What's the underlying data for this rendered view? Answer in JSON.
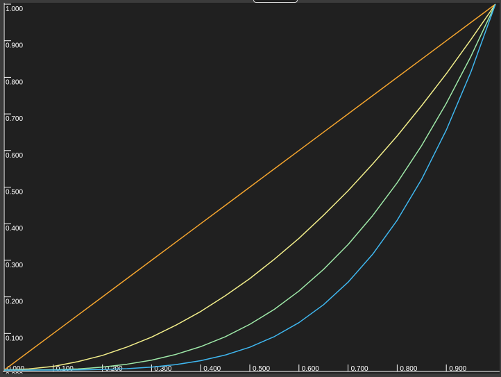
{
  "chart_data": {
    "type": "line",
    "title": "",
    "xlabel": "",
    "ylabel": "",
    "xlim": [
      0,
      1
    ],
    "ylim": [
      0,
      1
    ],
    "x_ticks": [
      "0.000",
      "0.100",
      "0.200",
      "0.300",
      "0.400",
      "0.500",
      "0.600",
      "0.700",
      "0.800",
      "0.900"
    ],
    "y_ticks": [
      "0.000",
      "0.100",
      "0.200",
      "0.300",
      "0.400",
      "0.500",
      "0.600",
      "0.700",
      "0.800",
      "0.900",
      "1.000"
    ],
    "x_tick_values": [
      0,
      0.1,
      0.2,
      0.3,
      0.4,
      0.5,
      0.6,
      0.7,
      0.8,
      0.9
    ],
    "y_tick_values": [
      0,
      0.1,
      0.2,
      0.3,
      0.4,
      0.5,
      0.6,
      0.7,
      0.8,
      0.9,
      1.0
    ],
    "x": [
      0,
      0.05,
      0.1,
      0.15,
      0.2,
      0.25,
      0.3,
      0.35,
      0.4,
      0.45,
      0.5,
      0.55,
      0.6,
      0.65,
      0.7,
      0.75,
      0.8,
      0.85,
      0.9,
      0.95,
      1.0
    ],
    "series": [
      {
        "color": "#f5a52e",
        "values": [
          0,
          0.05,
          0.1,
          0.15,
          0.2,
          0.25,
          0.3,
          0.35,
          0.4,
          0.45,
          0.5,
          0.55,
          0.6,
          0.65,
          0.7,
          0.75,
          0.8,
          0.85,
          0.9,
          0.95,
          1.0
        ]
      },
      {
        "color": "#f2ee8a",
        "values": [
          0,
          0.003,
          0.01,
          0.023,
          0.04,
          0.063,
          0.09,
          0.123,
          0.16,
          0.203,
          0.25,
          0.303,
          0.36,
          0.423,
          0.49,
          0.563,
          0.64,
          0.723,
          0.81,
          0.903,
          1.0
        ]
      },
      {
        "color": "#9ee8a8",
        "values": [
          0,
          0.0001,
          0.001,
          0.003,
          0.008,
          0.016,
          0.027,
          0.043,
          0.064,
          0.091,
          0.125,
          0.166,
          0.216,
          0.275,
          0.343,
          0.422,
          0.512,
          0.614,
          0.729,
          0.857,
          1.0
        ]
      },
      {
        "color": "#3fb7f0",
        "values": [
          0,
          0.0,
          0.0001,
          0.0005,
          0.0016,
          0.0039,
          0.0081,
          0.015,
          0.0256,
          0.041,
          0.0625,
          0.0915,
          0.1296,
          0.1785,
          0.2401,
          0.3164,
          0.4096,
          0.522,
          0.6561,
          0.8145,
          1.0
        ]
      }
    ],
    "grid": false,
    "background": "#202020",
    "axis_color": "#ffffff"
  }
}
